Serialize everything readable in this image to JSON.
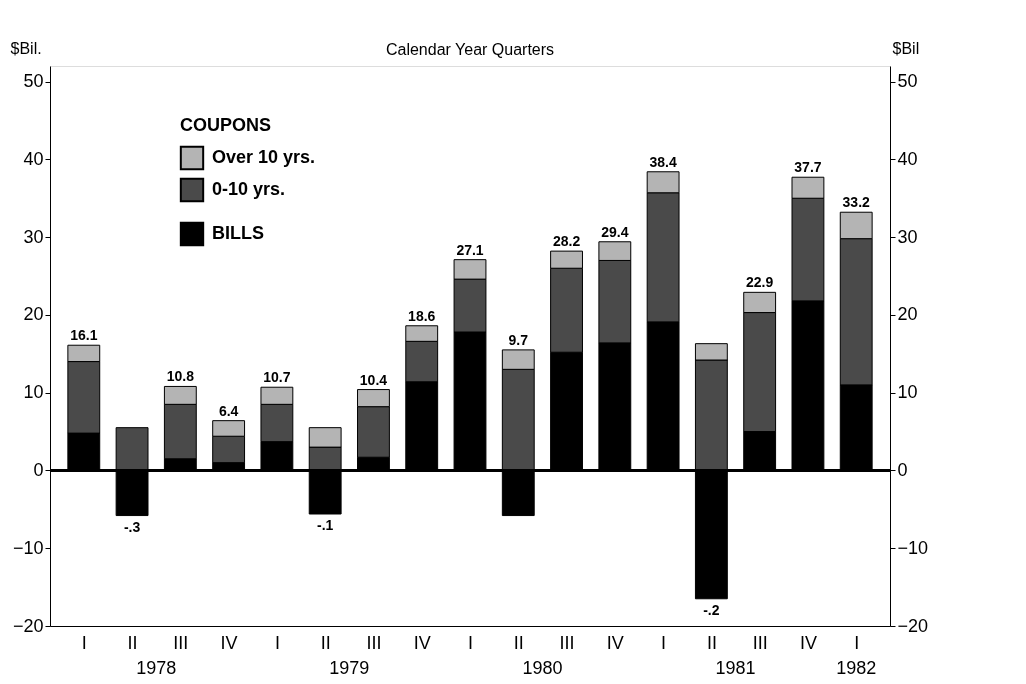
{
  "chart_data": {
    "type": "bar",
    "title": "Calendar Year Quarters",
    "categories": [
      "I",
      "II",
      "III",
      "IV",
      "I",
      "II",
      "III",
      "IV",
      "I",
      "II",
      "III",
      "IV",
      "I",
      "II",
      "III",
      "IV",
      "I"
    ],
    "series": [
      {
        "name": "BILLS",
        "color": "#000000",
        "values": [
          4.8,
          -5.8,
          1.5,
          1.0,
          3.7,
          -5.6,
          1.7,
          11.4,
          17.8,
          -5.8,
          15.2,
          16.4,
          19.1,
          -16.5,
          5.0,
          21.8,
          11.0
        ]
      },
      {
        "name": "0-10 yrs.",
        "color": "#4a4a4a",
        "values": [
          9.2,
          5.5,
          7.0,
          3.4,
          4.8,
          3.0,
          6.5,
          5.2,
          6.8,
          13.0,
          10.8,
          10.6,
          16.6,
          14.2,
          15.3,
          13.2,
          18.8
        ]
      },
      {
        "name": "Over 10 yrs.",
        "color": "#b4b4b4",
        "values": [
          2.1,
          null,
          2.3,
          2.0,
          2.2,
          2.5,
          2.2,
          2.0,
          2.5,
          2.5,
          2.2,
          2.4,
          2.7,
          2.1,
          2.6,
          2.7,
          3.4
        ]
      }
    ],
    "stacked": true,
    "totals": [
      "16.1",
      "-.3",
      "10.8",
      "6.4",
      "10.7",
      "-.1",
      "10.4",
      "18.6",
      "27.1",
      "9.7",
      "28.2",
      "29.4",
      "38.4",
      "-.2",
      "22.9",
      "37.7",
      "33.2"
    ],
    "legend_title": "COUPONS",
    "legend": "top left",
    "ylabel": "$Bil.",
    "y2label": "$Bil",
    "ylim": [
      -20,
      52
    ],
    "yticks": [
      -20,
      -10,
      0,
      10,
      20,
      30,
      40,
      50
    ],
    "y2lim": [
      -20,
      52
    ],
    "y2ticks": [
      -20,
      -10,
      0,
      10,
      20,
      30,
      40,
      50
    ],
    "ref_lines": [
      {
        "axis": "y",
        "value": 0
      }
    ],
    "grid": false,
    "annotations": [
      "1978",
      "1979",
      "1980",
      "1981",
      "1982"
    ]
  }
}
